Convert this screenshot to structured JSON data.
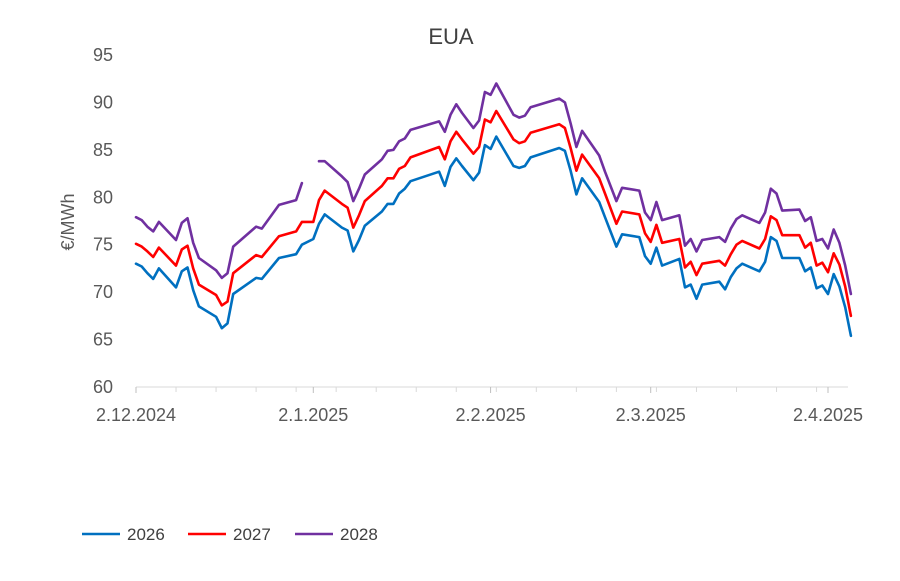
{
  "chart_data": {
    "type": "line",
    "title": "EUA",
    "xlabel": "",
    "ylabel": "€/MWh",
    "ylim": [
      60,
      95
    ],
    "yticks": [
      60,
      65,
      70,
      75,
      80,
      85,
      90,
      95
    ],
    "xticks": [
      "2.12.2024",
      "2.1.2025",
      "2.2.2025",
      "2.3.2025",
      "2.4.2025"
    ],
    "xlim": [
      "2024-12-02",
      "2025-04-05"
    ],
    "grid": false,
    "legend": "bottom-left",
    "series": [
      {
        "name": "2026",
        "color": "#0070C0",
        "points": [
          [
            "2024-12-02",
            73.0
          ],
          [
            "2024-12-03",
            72.7
          ],
          [
            "2024-12-04",
            72.0
          ],
          [
            "2024-12-05",
            71.4
          ],
          [
            "2024-12-06",
            72.5
          ],
          [
            "2024-12-09",
            70.5
          ],
          [
            "2024-12-10",
            72.2
          ],
          [
            "2024-12-11",
            72.6
          ],
          [
            "2024-12-12",
            70.2
          ],
          [
            "2024-12-13",
            68.5
          ],
          [
            "2024-12-16",
            67.4
          ],
          [
            "2024-12-17",
            66.2
          ],
          [
            "2024-12-18",
            66.7
          ],
          [
            "2024-12-19",
            69.8
          ],
          [
            "2024-12-23",
            71.5
          ],
          [
            "2024-12-24",
            71.4
          ],
          [
            "2024-12-27",
            73.6
          ],
          [
            "2024-12-30",
            74.0
          ],
          [
            "2024-12-31",
            75.0
          ],
          [
            "2025-01-02",
            75.6
          ],
          [
            "2025-01-03",
            77.2
          ],
          [
            "2025-01-04",
            78.2
          ],
          [
            "2025-01-07",
            76.8
          ],
          [
            "2025-01-08",
            76.5
          ],
          [
            "2025-01-09",
            74.3
          ],
          [
            "2025-01-10",
            75.5
          ],
          [
            "2025-01-11",
            77.0
          ],
          [
            "2025-01-14",
            78.5
          ],
          [
            "2025-01-15",
            79.3
          ],
          [
            "2025-01-16",
            79.3
          ],
          [
            "2025-01-17",
            80.4
          ],
          [
            "2025-01-18",
            80.9
          ],
          [
            "2025-01-19",
            81.7
          ],
          [
            "2025-01-24",
            82.7
          ],
          [
            "2025-01-25",
            81.2
          ],
          [
            "2025-01-26",
            83.2
          ],
          [
            "2025-01-27",
            84.1
          ],
          [
            "2025-01-28",
            83.3
          ],
          [
            "2025-01-30",
            81.8
          ],
          [
            "2025-01-31",
            82.6
          ],
          [
            "2025-02-01",
            85.5
          ],
          [
            "2025-02-02",
            85.1
          ],
          [
            "2025-02-03",
            86.4
          ],
          [
            "2025-02-06",
            83.3
          ],
          [
            "2025-02-07",
            83.1
          ],
          [
            "2025-02-08",
            83.3
          ],
          [
            "2025-02-09",
            84.2
          ],
          [
            "2025-02-14",
            85.2
          ],
          [
            "2025-02-15",
            84.9
          ],
          [
            "2025-02-16",
            82.8
          ],
          [
            "2025-02-17",
            80.3
          ],
          [
            "2025-02-18",
            82.0
          ],
          [
            "2025-02-21",
            79.5
          ],
          [
            "2025-02-22",
            77.9
          ],
          [
            "2025-02-24",
            74.8
          ],
          [
            "2025-02-25",
            76.1
          ],
          [
            "2025-02-28",
            75.8
          ],
          [
            "2025-03-01",
            73.8
          ],
          [
            "2025-03-02",
            73.0
          ],
          [
            "2025-03-03",
            74.7
          ],
          [
            "2025-03-04",
            72.8
          ],
          [
            "2025-03-07",
            73.5
          ],
          [
            "2025-03-08",
            70.5
          ],
          [
            "2025-03-09",
            70.8
          ],
          [
            "2025-03-10",
            69.3
          ],
          [
            "2025-03-11",
            70.8
          ],
          [
            "2025-03-14",
            71.1
          ],
          [
            "2025-03-15",
            70.3
          ],
          [
            "2025-03-16",
            71.6
          ],
          [
            "2025-03-17",
            72.5
          ],
          [
            "2025-03-18",
            73.0
          ],
          [
            "2025-03-21",
            72.2
          ],
          [
            "2025-03-22",
            73.2
          ],
          [
            "2025-03-23",
            75.8
          ],
          [
            "2025-03-24",
            75.4
          ],
          [
            "2025-03-25",
            73.6
          ],
          [
            "2025-03-28",
            73.6
          ],
          [
            "2025-03-29",
            72.2
          ],
          [
            "2025-03-30",
            72.6
          ],
          [
            "2025-03-31",
            70.4
          ],
          [
            "2025-04-01",
            70.7
          ],
          [
            "2025-04-02",
            69.8
          ],
          [
            "2025-04-03",
            71.9
          ],
          [
            "2025-04-04",
            70.6
          ],
          [
            "2025-04-05",
            68.4
          ],
          [
            "2025-04-06",
            65.4
          ]
        ]
      },
      {
        "name": "2027",
        "color": "#FF0000",
        "points": [
          [
            "2024-12-02",
            75.1
          ],
          [
            "2024-12-03",
            74.8
          ],
          [
            "2024-12-04",
            74.3
          ],
          [
            "2024-12-05",
            73.7
          ],
          [
            "2024-12-06",
            74.7
          ],
          [
            "2024-12-09",
            72.8
          ],
          [
            "2024-12-10",
            74.5
          ],
          [
            "2024-12-11",
            74.9
          ],
          [
            "2024-12-12",
            72.5
          ],
          [
            "2024-12-13",
            70.8
          ],
          [
            "2024-12-16",
            69.7
          ],
          [
            "2024-12-17",
            68.6
          ],
          [
            "2024-12-18",
            69.0
          ],
          [
            "2024-12-19",
            72.0
          ],
          [
            "2024-12-23",
            73.9
          ],
          [
            "2024-12-24",
            73.7
          ],
          [
            "2024-12-27",
            75.9
          ],
          [
            "2024-12-30",
            76.4
          ],
          [
            "2024-12-31",
            77.4
          ],
          [
            "2025-01-02",
            77.4
          ],
          [
            "2025-01-03",
            79.7
          ],
          [
            "2025-01-04",
            80.7
          ],
          [
            "2025-01-07",
            79.3
          ],
          [
            "2025-01-08",
            78.9
          ],
          [
            "2025-01-09",
            76.8
          ],
          [
            "2025-01-10",
            78.1
          ],
          [
            "2025-01-11",
            79.6
          ],
          [
            "2025-01-14",
            81.2
          ],
          [
            "2025-01-15",
            82.0
          ],
          [
            "2025-01-16",
            82.0
          ],
          [
            "2025-01-17",
            83.0
          ],
          [
            "2025-01-18",
            83.3
          ],
          [
            "2025-01-19",
            84.2
          ],
          [
            "2025-01-24",
            85.3
          ],
          [
            "2025-01-25",
            84.0
          ],
          [
            "2025-01-26",
            85.9
          ],
          [
            "2025-01-27",
            86.9
          ],
          [
            "2025-01-28",
            86.1
          ],
          [
            "2025-01-30",
            84.6
          ],
          [
            "2025-01-31",
            85.3
          ],
          [
            "2025-02-01",
            88.2
          ],
          [
            "2025-02-02",
            87.9
          ],
          [
            "2025-02-03",
            89.1
          ],
          [
            "2025-02-06",
            86.1
          ],
          [
            "2025-02-07",
            85.7
          ],
          [
            "2025-02-08",
            85.9
          ],
          [
            "2025-02-09",
            86.8
          ],
          [
            "2025-02-14",
            87.7
          ],
          [
            "2025-02-15",
            87.3
          ],
          [
            "2025-02-16",
            85.2
          ],
          [
            "2025-02-17",
            82.8
          ],
          [
            "2025-02-18",
            84.5
          ],
          [
            "2025-02-21",
            82.0
          ],
          [
            "2025-02-22",
            80.4
          ],
          [
            "2025-02-24",
            77.2
          ],
          [
            "2025-02-25",
            78.5
          ],
          [
            "2025-02-28",
            78.2
          ],
          [
            "2025-03-01",
            76.2
          ],
          [
            "2025-03-02",
            75.3
          ],
          [
            "2025-03-03",
            77.1
          ],
          [
            "2025-03-04",
            75.2
          ],
          [
            "2025-03-07",
            75.6
          ],
          [
            "2025-03-08",
            72.6
          ],
          [
            "2025-03-09",
            73.2
          ],
          [
            "2025-03-10",
            71.8
          ],
          [
            "2025-03-11",
            73.0
          ],
          [
            "2025-03-14",
            73.3
          ],
          [
            "2025-03-15",
            72.8
          ],
          [
            "2025-03-16",
            74.0
          ],
          [
            "2025-03-17",
            75.0
          ],
          [
            "2025-03-18",
            75.4
          ],
          [
            "2025-03-21",
            74.6
          ],
          [
            "2025-03-22",
            75.6
          ],
          [
            "2025-03-23",
            78.0
          ],
          [
            "2025-03-24",
            77.6
          ],
          [
            "2025-03-25",
            76.0
          ],
          [
            "2025-03-28",
            76.0
          ],
          [
            "2025-03-29",
            74.7
          ],
          [
            "2025-03-30",
            75.2
          ],
          [
            "2025-03-31",
            72.8
          ],
          [
            "2025-04-01",
            73.1
          ],
          [
            "2025-04-02",
            72.1
          ],
          [
            "2025-04-03",
            74.1
          ],
          [
            "2025-04-04",
            72.9
          ],
          [
            "2025-04-05",
            70.6
          ],
          [
            "2025-04-06",
            67.5
          ]
        ]
      },
      {
        "name": "2028",
        "color": "#7030A0",
        "points": [
          [
            "2024-12-02",
            77.9
          ],
          [
            "2024-12-03",
            77.6
          ],
          [
            "2024-12-04",
            76.9
          ],
          [
            "2024-12-05",
            76.4
          ],
          [
            "2024-12-06",
            77.4
          ],
          [
            "2024-12-09",
            75.5
          ],
          [
            "2024-12-10",
            77.3
          ],
          [
            "2024-12-11",
            77.8
          ],
          [
            "2024-12-12",
            75.2
          ],
          [
            "2024-12-13",
            73.6
          ],
          [
            "2024-12-16",
            72.3
          ],
          [
            "2024-12-17",
            71.5
          ],
          [
            "2024-12-18",
            72.0
          ],
          [
            "2024-12-19",
            74.8
          ],
          [
            "2024-12-23",
            76.9
          ],
          [
            "2024-12-24",
            76.7
          ],
          [
            "2024-12-27",
            79.2
          ],
          [
            "2024-12-30",
            79.7
          ],
          [
            "2024-12-31",
            81.5
          ],
          [
            "2025-01-02",
            null
          ],
          [
            "2025-01-03",
            83.8
          ],
          [
            "2025-01-04",
            83.8
          ],
          [
            "2025-01-07",
            82.2
          ],
          [
            "2025-01-08",
            81.6
          ],
          [
            "2025-01-09",
            79.6
          ],
          [
            "2025-01-10",
            80.9
          ],
          [
            "2025-01-11",
            82.4
          ],
          [
            "2025-01-14",
            84.0
          ],
          [
            "2025-01-15",
            84.9
          ],
          [
            "2025-01-16",
            85.0
          ],
          [
            "2025-01-17",
            85.9
          ],
          [
            "2025-01-18",
            86.2
          ],
          [
            "2025-01-19",
            87.1
          ],
          [
            "2025-01-24",
            88.0
          ],
          [
            "2025-01-25",
            86.9
          ],
          [
            "2025-01-26",
            88.7
          ],
          [
            "2025-01-27",
            89.8
          ],
          [
            "2025-01-28",
            88.9
          ],
          [
            "2025-01-30",
            87.3
          ],
          [
            "2025-01-31",
            88.1
          ],
          [
            "2025-02-01",
            91.1
          ],
          [
            "2025-02-02",
            90.8
          ],
          [
            "2025-02-03",
            92.0
          ],
          [
            "2025-02-06",
            88.7
          ],
          [
            "2025-02-07",
            88.4
          ],
          [
            "2025-02-08",
            88.6
          ],
          [
            "2025-02-09",
            89.5
          ],
          [
            "2025-02-14",
            90.4
          ],
          [
            "2025-02-15",
            90.0
          ],
          [
            "2025-02-16",
            87.8
          ],
          [
            "2025-02-17",
            85.3
          ],
          [
            "2025-02-18",
            87.0
          ],
          [
            "2025-02-21",
            84.4
          ],
          [
            "2025-02-22",
            82.7
          ],
          [
            "2025-02-24",
            79.6
          ],
          [
            "2025-02-25",
            81.0
          ],
          [
            "2025-02-28",
            80.7
          ],
          [
            "2025-03-01",
            78.4
          ],
          [
            "2025-03-02",
            77.6
          ],
          [
            "2025-03-03",
            79.5
          ],
          [
            "2025-03-04",
            77.6
          ],
          [
            "2025-03-07",
            78.1
          ],
          [
            "2025-03-08",
            74.9
          ],
          [
            "2025-03-09",
            75.6
          ],
          [
            "2025-03-10",
            74.3
          ],
          [
            "2025-03-11",
            75.5
          ],
          [
            "2025-03-14",
            75.8
          ],
          [
            "2025-03-15",
            75.3
          ],
          [
            "2025-03-16",
            76.7
          ],
          [
            "2025-03-17",
            77.7
          ],
          [
            "2025-03-18",
            78.1
          ],
          [
            "2025-03-21",
            77.3
          ],
          [
            "2025-03-22",
            78.4
          ],
          [
            "2025-03-23",
            80.9
          ],
          [
            "2025-03-24",
            80.4
          ],
          [
            "2025-03-25",
            78.6
          ],
          [
            "2025-03-28",
            78.7
          ],
          [
            "2025-03-29",
            77.5
          ],
          [
            "2025-03-30",
            77.9
          ],
          [
            "2025-03-31",
            75.4
          ],
          [
            "2025-04-01",
            75.6
          ],
          [
            "2025-04-02",
            74.6
          ],
          [
            "2025-04-03",
            76.6
          ],
          [
            "2025-04-04",
            75.2
          ],
          [
            "2025-04-05",
            72.8
          ],
          [
            "2025-04-06",
            69.8
          ]
        ]
      }
    ]
  }
}
